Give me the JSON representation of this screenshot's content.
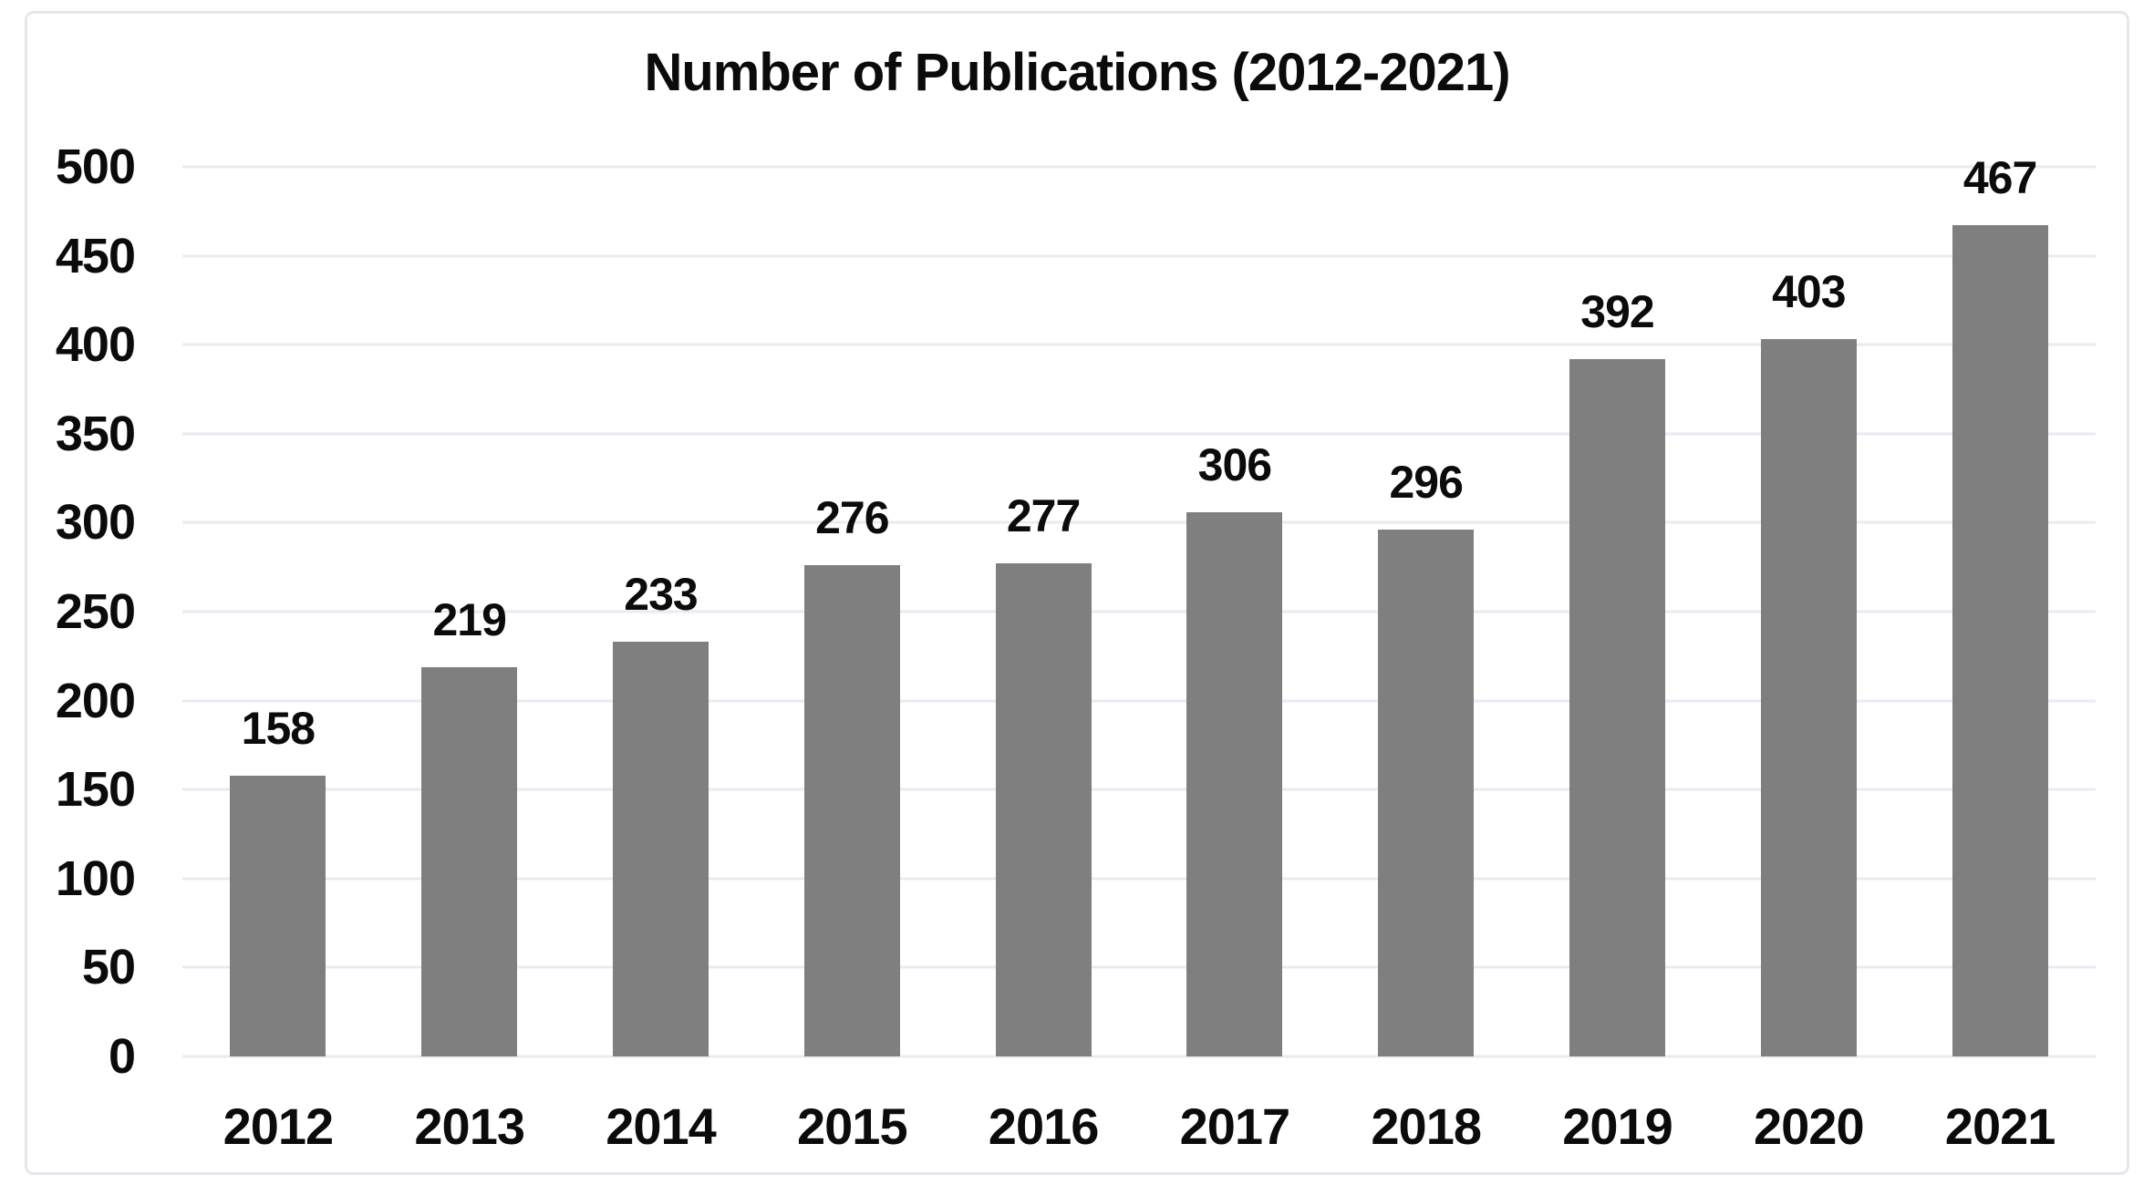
{
  "chart_data": {
    "type": "bar",
    "title": "Number of Publications (2012-2021)",
    "categories": [
      "2012",
      "2013",
      "2014",
      "2015",
      "2016",
      "2017",
      "2018",
      "2019",
      "2020",
      "2021"
    ],
    "values": [
      158,
      219,
      233,
      276,
      277,
      306,
      296,
      392,
      403,
      467
    ],
    "data_labels": [
      158,
      219,
      233,
      276,
      277,
      306,
      296,
      392,
      403,
      467
    ],
    "xlabel": "",
    "ylabel": "",
    "ylim": [
      0,
      500
    ],
    "ytick_interval": 50,
    "yticks": [
      0,
      50,
      100,
      150,
      200,
      250,
      300,
      350,
      400,
      450,
      500
    ],
    "grid": "horizontal",
    "legend_position": "none",
    "colors": {
      "bar": "#7f7f7f",
      "text": "#0b0b0b",
      "gridline": "#e7ebf2",
      "frame_border": "#e4e8ee",
      "background": "#ffffff"
    }
  }
}
